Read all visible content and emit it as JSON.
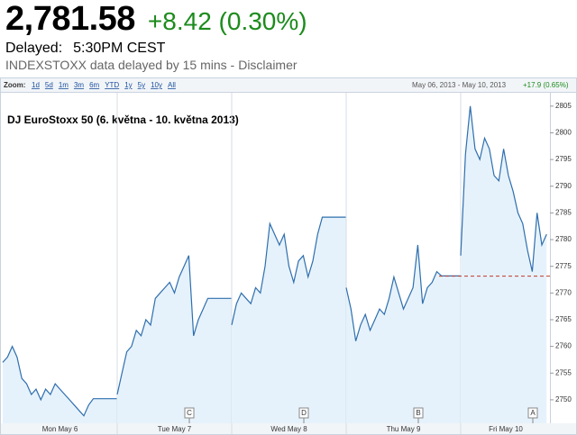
{
  "header": {
    "price": "2,781.58",
    "change": "+8.42 (0.30%)",
    "delayed_label": "Delayed:",
    "time": "5:30PM CEST",
    "source_note": "INDEXSTOXX data delayed by 15 mins -",
    "disclaimer": "Disclaimer"
  },
  "toolbar": {
    "zoom_label": "Zoom:",
    "zoom_options": [
      "1d",
      "5d",
      "1m",
      "3m",
      "6m",
      "YTD",
      "1y",
      "5y",
      "10y",
      "All"
    ],
    "date_range": "May 06, 2013 - May 10, 2013",
    "range_change": "+17.9 (0.65%)"
  },
  "chart_data": {
    "type": "line",
    "title": "DJ EuroStoxx 50 (6. května - 10. května 2013)",
    "color": "#2f6fae",
    "fill": "#e6f2fb",
    "days": [
      {
        "label": "Mon May 6",
        "values": [
          2757,
          2758,
          2760,
          2758,
          2754,
          2753,
          2751,
          2752,
          2750,
          2752,
          2751,
          2753,
          2752,
          2751,
          2750,
          2749,
          2748,
          2747,
          2749,
          2750.2,
          2750.2,
          2750.2,
          2750.2,
          2750.2,
          2750.2
        ]
      },
      {
        "label": "Tue May 7",
        "values": [
          2751,
          2755,
          2759,
          2760,
          2763,
          2762,
          2765,
          2764,
          2769,
          2770,
          2771,
          2772,
          2770,
          2773,
          2775,
          2777,
          2762,
          2765,
          2767,
          2769,
          2769,
          2769,
          2769,
          2769,
          2769
        ]
      },
      {
        "label": "Wed May 8",
        "values": [
          2764,
          2768,
          2770,
          2769,
          2768,
          2771,
          2770,
          2775,
          2783,
          2781,
          2779,
          2781,
          2775,
          2772,
          2776,
          2777,
          2773,
          2776,
          2781,
          2784.2,
          2784.2,
          2784.2,
          2784.2,
          2784.2,
          2784.2
        ]
      },
      {
        "label": "Thu May 9",
        "values": [
          2771,
          2767,
          2761,
          2764,
          2766,
          2763,
          2765,
          2767,
          2766,
          2769,
          2773,
          2770,
          2767,
          2769,
          2771,
          2779,
          2768,
          2771,
          2772,
          2774,
          2773.2,
          2773.2,
          2773.2,
          2773.2,
          2773.2
        ]
      },
      {
        "label": "Fri May 10",
        "values": [
          2777,
          2796,
          2805,
          2797,
          2795,
          2799,
          2797,
          2792,
          2791,
          2797,
          2792,
          2789,
          2785,
          2783,
          2778,
          2774,
          2785,
          2779,
          2781
        ]
      }
    ],
    "previous_close": 2773.16,
    "previous_close_color": "#c0392b",
    "flags": [
      "C",
      "D",
      "B",
      "A"
    ],
    "ylim": [
      2745.6,
      2807.5
    ],
    "yticks": [
      2750,
      2755,
      2760,
      2765,
      2770,
      2775,
      2780,
      2785,
      2790,
      2795,
      2800,
      2805
    ]
  }
}
